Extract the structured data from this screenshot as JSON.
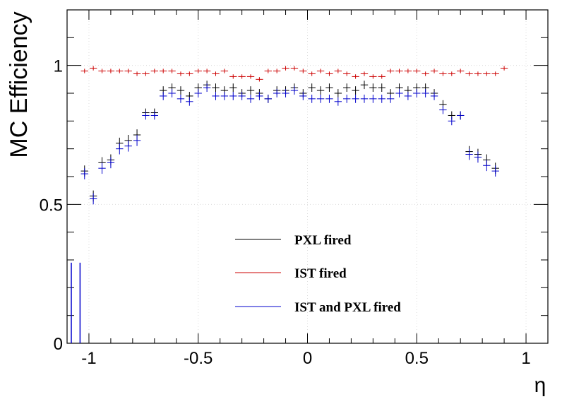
{
  "chart_data": {
    "type": "scatter",
    "style": "error-bar crosses",
    "xlabel": "η",
    "ylabel": "MC Efficiency",
    "xlim": [
      -1.1,
      1.1
    ],
    "ylim": [
      0,
      1.2
    ],
    "x_ticks": [
      -1,
      -0.5,
      0,
      0.5,
      1
    ],
    "x_tick_labels": [
      "-1",
      "-0.5",
      "0",
      "0.5",
      "1"
    ],
    "y_ticks": [
      0,
      0.5,
      1
    ],
    "y_tick_labels": [
      "0",
      "0.5",
      "1"
    ],
    "grid": "dotted light gray",
    "legend_position": "center",
    "series": [
      {
        "name": "PXL fired",
        "color": "#000000",
        "x": [
          -1.02,
          -0.98,
          -0.94,
          -0.9,
          -0.86,
          -0.82,
          -0.78,
          -0.74,
          -0.7,
          -0.66,
          -0.62,
          -0.58,
          -0.54,
          -0.5,
          -0.46,
          -0.42,
          -0.38,
          -0.34,
          -0.3,
          -0.26,
          -0.22,
          -0.18,
          -0.14,
          -0.1,
          -0.06,
          -0.02,
          0.02,
          0.06,
          0.1,
          0.14,
          0.18,
          0.22,
          0.26,
          0.3,
          0.34,
          0.38,
          0.42,
          0.46,
          0.5,
          0.54,
          0.58,
          0.62,
          0.66,
          0.7,
          0.74,
          0.78,
          0.82,
          0.86,
          0.9
        ],
        "y": [
          0.62,
          0.53,
          0.65,
          0.66,
          0.72,
          0.73,
          0.75,
          0.83,
          0.83,
          0.91,
          0.92,
          0.91,
          0.89,
          0.92,
          0.93,
          0.92,
          0.91,
          0.92,
          0.9,
          0.91,
          0.9,
          0.88,
          0.91,
          0.91,
          0.92,
          0.9,
          0.92,
          0.91,
          0.92,
          0.9,
          0.92,
          0.91,
          0.93,
          0.92,
          0.92,
          0.9,
          0.92,
          0.91,
          0.92,
          0.92,
          0.9,
          0.86,
          0.82,
          0.82,
          0.69,
          0.68,
          0.66,
          0.63,
          null
        ],
        "yerr": [
          0.02,
          0.02,
          0.02,
          0.02,
          0.02,
          0.02,
          0.02,
          0.015,
          0.015,
          0.015,
          0.015,
          0.015,
          0.015,
          0.015,
          0.015,
          0.015,
          0.015,
          0.015,
          0.015,
          0.015,
          0.015,
          0.015,
          0.015,
          0.015,
          0.015,
          0.015,
          0.015,
          0.015,
          0.015,
          0.015,
          0.015,
          0.015,
          0.015,
          0.015,
          0.015,
          0.015,
          0.015,
          0.015,
          0.015,
          0.015,
          0.015,
          0.015,
          0.015,
          0.015,
          0.02,
          0.02,
          0.02,
          0.02,
          0.02
        ]
      },
      {
        "name": "IST fired",
        "color": "#cc0000",
        "x": [
          -1.02,
          -0.98,
          -0.94,
          -0.9,
          -0.86,
          -0.82,
          -0.78,
          -0.74,
          -0.7,
          -0.66,
          -0.62,
          -0.58,
          -0.54,
          -0.5,
          -0.46,
          -0.42,
          -0.38,
          -0.34,
          -0.3,
          -0.26,
          -0.22,
          -0.18,
          -0.14,
          -0.1,
          -0.06,
          -0.02,
          0.02,
          0.06,
          0.1,
          0.14,
          0.18,
          0.22,
          0.26,
          0.3,
          0.34,
          0.38,
          0.42,
          0.46,
          0.5,
          0.54,
          0.58,
          0.62,
          0.66,
          0.7,
          0.74,
          0.78,
          0.82,
          0.86,
          0.9
        ],
        "y": [
          0.98,
          0.99,
          0.98,
          0.98,
          0.98,
          0.98,
          0.97,
          0.97,
          0.98,
          0.98,
          0.98,
          0.97,
          0.97,
          0.98,
          0.98,
          0.97,
          0.98,
          0.96,
          0.96,
          0.96,
          0.95,
          0.98,
          0.98,
          0.99,
          0.99,
          0.98,
          0.97,
          0.98,
          0.97,
          0.98,
          0.97,
          0.96,
          0.97,
          0.96,
          0.96,
          0.98,
          0.98,
          0.98,
          0.98,
          0.97,
          0.98,
          0.97,
          0.97,
          0.98,
          0.97,
          0.97,
          0.97,
          0.97,
          0.99
        ],
        "yerr": [
          0.008,
          0.008,
          0.008,
          0.008,
          0.008,
          0.008,
          0.008,
          0.008,
          0.008,
          0.008,
          0.008,
          0.008,
          0.008,
          0.008,
          0.008,
          0.008,
          0.008,
          0.008,
          0.008,
          0.008,
          0.008,
          0.008,
          0.008,
          0.008,
          0.008,
          0.008,
          0.008,
          0.008,
          0.008,
          0.008,
          0.008,
          0.008,
          0.008,
          0.008,
          0.008,
          0.008,
          0.008,
          0.008,
          0.008,
          0.008,
          0.008,
          0.008,
          0.008,
          0.008,
          0.008,
          0.008,
          0.008,
          0.008,
          0.008
        ]
      },
      {
        "name": "IST and PXL fired",
        "color": "#0000cc",
        "x": [
          -1.02,
          -0.98,
          -0.94,
          -0.9,
          -0.86,
          -0.82,
          -0.78,
          -0.74,
          -0.7,
          -0.66,
          -0.62,
          -0.58,
          -0.54,
          -0.5,
          -0.46,
          -0.42,
          -0.38,
          -0.34,
          -0.3,
          -0.26,
          -0.22,
          -0.18,
          -0.14,
          -0.1,
          -0.06,
          -0.02,
          0.02,
          0.06,
          0.1,
          0.14,
          0.18,
          0.22,
          0.26,
          0.3,
          0.34,
          0.38,
          0.42,
          0.46,
          0.5,
          0.54,
          0.58,
          0.62,
          0.66,
          0.7,
          0.74,
          0.78,
          0.82,
          0.86,
          0.9
        ],
        "y": [
          0.61,
          0.52,
          0.63,
          0.65,
          0.7,
          0.71,
          0.73,
          0.82,
          0.82,
          0.89,
          0.9,
          0.88,
          0.87,
          0.9,
          0.92,
          0.89,
          0.89,
          0.89,
          0.89,
          0.88,
          0.89,
          0.88,
          0.9,
          0.9,
          0.91,
          0.89,
          0.88,
          0.88,
          0.88,
          0.87,
          0.88,
          0.88,
          0.88,
          0.88,
          0.88,
          0.88,
          0.9,
          0.89,
          0.9,
          0.9,
          0.89,
          0.84,
          0.8,
          0.82,
          0.68,
          0.67,
          0.64,
          0.62,
          null
        ],
        "yerr": [
          0.02,
          0.02,
          0.02,
          0.02,
          0.02,
          0.02,
          0.02,
          0.015,
          0.015,
          0.015,
          0.015,
          0.015,
          0.015,
          0.015,
          0.015,
          0.015,
          0.015,
          0.015,
          0.015,
          0.015,
          0.015,
          0.015,
          0.015,
          0.015,
          0.015,
          0.015,
          0.015,
          0.015,
          0.015,
          0.015,
          0.015,
          0.015,
          0.015,
          0.015,
          0.015,
          0.015,
          0.015,
          0.015,
          0.015,
          0.015,
          0.015,
          0.015,
          0.015,
          0.015,
          0.02,
          0.02,
          0.02,
          0.02,
          0.02
        ]
      }
    ],
    "low_edge_bars": [
      {
        "color": "#0000cc",
        "x": -1.1,
        "y_top": 0.29
      },
      {
        "color": "#0000cc",
        "x": -1.06,
        "y_top": 0.29
      }
    ]
  }
}
